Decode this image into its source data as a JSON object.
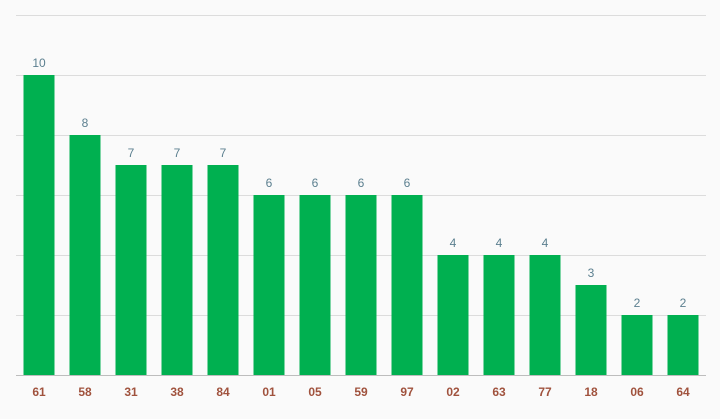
{
  "chart_data": {
    "type": "bar",
    "title": "",
    "xlabel": "",
    "ylabel": "",
    "categories": [
      "61",
      "58",
      "31",
      "38",
      "84",
      "01",
      "05",
      "59",
      "97",
      "02",
      "63",
      "77",
      "18",
      "06",
      "64"
    ],
    "values": [
      10,
      8,
      7,
      7,
      7,
      6,
      6,
      6,
      6,
      4,
      4,
      4,
      3,
      2,
      2
    ],
    "ylim": [
      0,
      12
    ],
    "grid": true,
    "legend": "none",
    "bar_color": "#00b050",
    "value_label_color": "#5b7f8f",
    "tick_label_color": "#a0523d",
    "grid_color": "#dcdcdc"
  }
}
